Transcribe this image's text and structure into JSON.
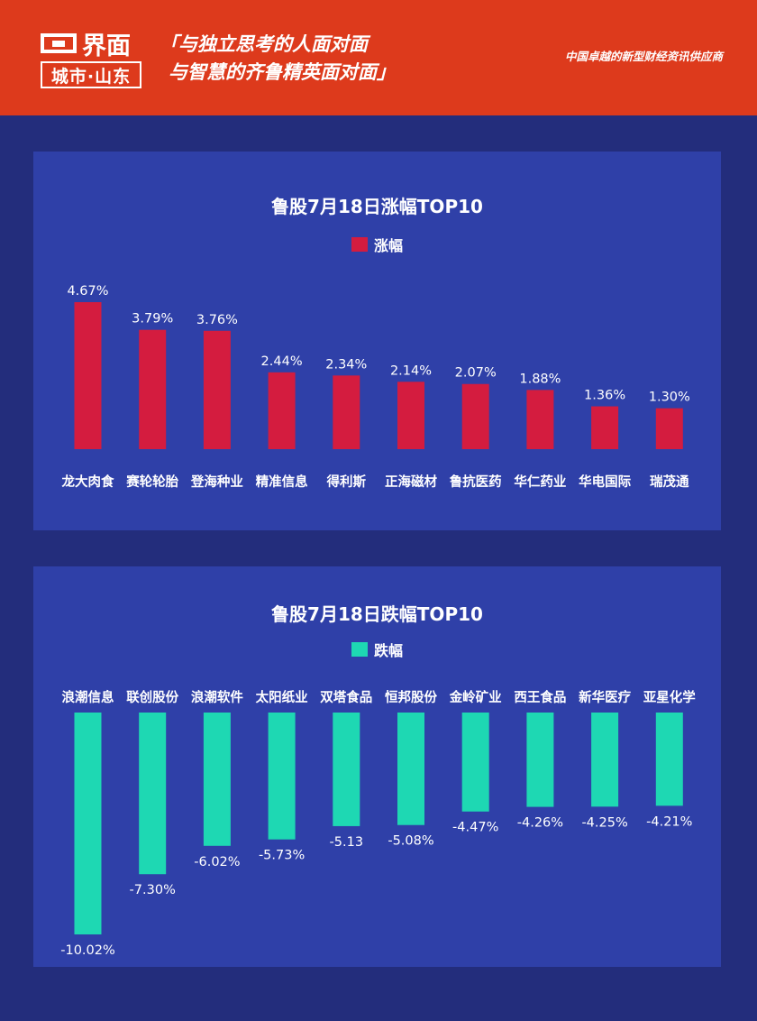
{
  "header": {
    "logo_main": "界面",
    "logo_sub": "城市·山东",
    "slogan_line1": "「与独立思考的人面对面",
    "slogan_line2": "与智慧的齐鲁精英面对面」",
    "tagline": "中国卓越的新型财经资讯供应商"
  },
  "colors": {
    "header_bg": "#dd3a1c",
    "page_bg": "#232d7c",
    "panel_bg": "#2f40a8",
    "gain": "#d41c3f",
    "loss": "#1ed8b3"
  },
  "chart_data": [
    {
      "type": "bar",
      "title": "鲁股7月18日涨幅TOP10",
      "legend": "涨幅",
      "categories": [
        "龙大肉食",
        "赛轮轮胎",
        "登海种业",
        "精准信息",
        "得利斯",
        "正海磁材",
        "鲁抗医药",
        "华仁药业",
        "华电国际",
        "瑞茂通"
      ],
      "values": [
        4.67,
        3.79,
        3.76,
        2.44,
        2.34,
        2.14,
        2.07,
        1.88,
        1.36,
        1.3
      ],
      "labels": [
        "4.67%",
        "3.79%",
        "3.76%",
        "2.44%",
        "2.34%",
        "2.14%",
        "2.07%",
        "1.88%",
        "1.36%",
        "1.30%"
      ],
      "ylim": [
        0,
        4.67
      ]
    },
    {
      "type": "bar",
      "title": "鲁股7月18日跌幅TOP10",
      "legend": "跌幅",
      "categories": [
        "浪潮信息",
        "联创股份",
        "浪潮软件",
        "太阳纸业",
        "双塔食品",
        "恒邦股份",
        "金岭矿业",
        "西王食品",
        "新华医疗",
        "亚星化学"
      ],
      "values": [
        -10.02,
        -7.3,
        -6.02,
        -5.73,
        -5.13,
        -5.08,
        -4.47,
        -4.26,
        -4.25,
        -4.21
      ],
      "labels": [
        "-10.02%",
        "-7.30%",
        "-6.02%",
        "-5.73%",
        "-5.13",
        "-5.08%",
        "-4.47%",
        "-4.26%",
        "-4.25%",
        "-4.21%"
      ],
      "ylim": [
        -10.02,
        0
      ]
    }
  ]
}
